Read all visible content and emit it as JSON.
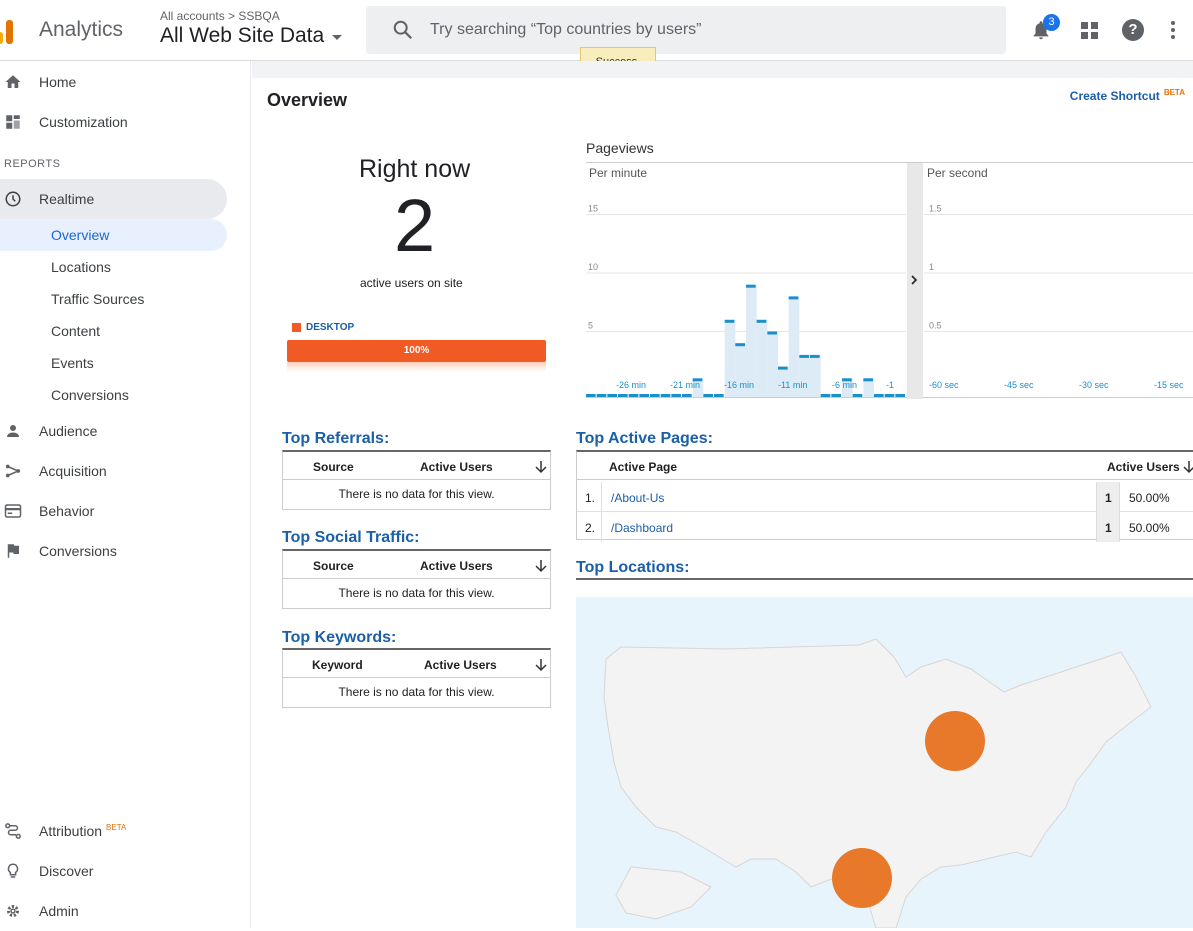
{
  "header": {
    "app_name": "Analytics",
    "breadcrumb": "All accounts > SSBQA",
    "property": "All Web Site Data",
    "search_placeholder": "Try searching “Top countries by users”",
    "notification_count": "3",
    "toast": "Success.",
    "icons": [
      "analytics-logo",
      "search-icon",
      "bell-icon",
      "apps-icon",
      "help-icon",
      "more-icon"
    ]
  },
  "sidebar": {
    "home": "Home",
    "customization": "Customization",
    "reports_header": "REPORTS",
    "realtime": "Realtime",
    "realtime_items": [
      "Overview",
      "Locations",
      "Traffic Sources",
      "Content",
      "Events",
      "Conversions"
    ],
    "audience": "Audience",
    "acquisition": "Acquisition",
    "behavior": "Behavior",
    "conversions": "Conversions",
    "attribution": "Attribution",
    "attribution_badge": "BETA",
    "discover": "Discover",
    "admin": "Admin"
  },
  "overview": {
    "title": "Overview",
    "create_shortcut": "Create Shortcut",
    "shortcut_badge": "BETA",
    "right_now": "Right now",
    "active_users": "2",
    "active_label": "active users on site",
    "device_label": "DESKTOP",
    "device_pct": "100%",
    "device_fraction": 1.0
  },
  "chart_data": {
    "type": "bar",
    "title": "Pageviews",
    "panels": [
      {
        "label": "Per minute",
        "x_ticks": [
          "-26 min",
          "-21 min",
          "-16 min",
          "-11 min",
          "-6 min",
          "-1"
        ],
        "y_ticks": [
          "5",
          "10",
          "15"
        ],
        "ylim": [
          0,
          20
        ],
        "values": [
          0,
          0,
          0,
          0,
          0,
          0,
          0,
          0,
          0,
          0,
          1,
          0,
          0,
          6,
          4,
          9,
          6,
          5,
          2,
          8,
          3,
          3,
          0,
          0,
          1,
          0,
          1,
          0,
          0,
          0
        ]
      },
      {
        "label": "Per second",
        "x_ticks": [
          "-60 sec",
          "-45 sec",
          "-30 sec",
          "-15 sec"
        ],
        "y_ticks": [
          "0.5",
          "1",
          "1.5"
        ],
        "ylim": [
          0,
          2
        ],
        "values": []
      }
    ]
  },
  "referrals": {
    "title": "Top Referrals:",
    "col1": "Source",
    "col2": "Active Users",
    "empty": "There is no data for this view."
  },
  "social": {
    "title": "Top Social Traffic:",
    "col1": "Source",
    "col2": "Active Users",
    "empty": "There is no data for this view."
  },
  "keywords": {
    "title": "Top Keywords:",
    "col1": "Keyword",
    "col2": "Active Users",
    "empty": "There is no data for this view."
  },
  "pages": {
    "title": "Top Active Pages:",
    "col1": "Active Page",
    "col2": "Active Users",
    "rows": [
      {
        "rank": "1.",
        "page": "/About-Us",
        "users": "1",
        "pct": "50.00%"
      },
      {
        "rank": "2.",
        "page": "/Dashboard",
        "users": "1",
        "pct": "50.00%"
      }
    ]
  },
  "locations": {
    "title": "Top Locations:"
  },
  "colors": {
    "accent_blue": "#1a5fa8",
    "desktop_orange": "#f15a22",
    "location_marker": "#e8792b",
    "chart_bar": "#1a8fc9"
  }
}
